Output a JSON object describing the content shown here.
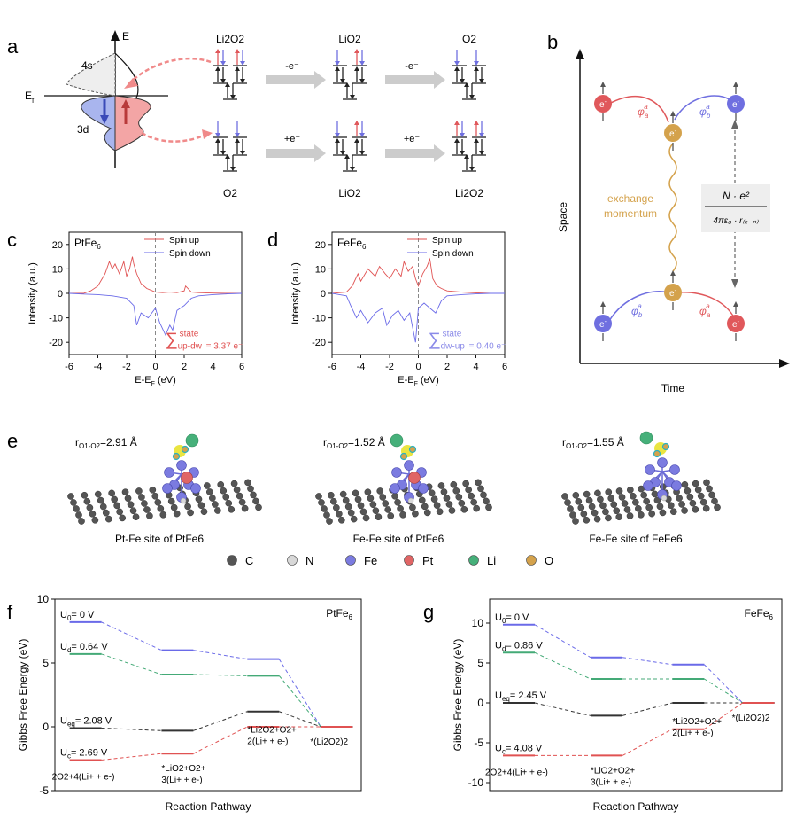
{
  "panels": {
    "a": "a",
    "b": "b",
    "c": "c",
    "d": "d",
    "e": "e",
    "f": "f",
    "g": "g"
  },
  "panel_a": {
    "axis_E": "E",
    "E_f": "E",
    "E_f_sub": "f",
    "orb_4s": "4s",
    "orb_3d": "3d",
    "top_row": [
      "Li2O2",
      "LiO2",
      "O2"
    ],
    "top_arrows": [
      "-e⁻",
      "-e⁻"
    ],
    "bottom_row": [
      "O2",
      "LiO2",
      "Li2O2"
    ],
    "bottom_arrows": [
      "+e⁻",
      "+e⁻"
    ],
    "colors": {
      "up": "#e0585b",
      "down": "#6f6fe0",
      "arrow": "#cccccc"
    }
  },
  "panel_b": {
    "xlabel": "Time",
    "ylabel": "Space",
    "electron": "e",
    "exchange": [
      "exchange",
      "momentum"
    ],
    "phi_a": "φ",
    "phi_b": "φ",
    "colors": {
      "red": "#e0585b",
      "blue": "#6f6fe0",
      "gold": "#d4a24c"
    }
  },
  "chart_data": [
    {
      "id": "c",
      "type": "line",
      "title": "PtFe6",
      "xlabel": "E-EF (eV)",
      "ylabel": "Intensity (a.u.)",
      "xlim": [
        -6,
        6
      ],
      "ylim": [
        -25,
        25
      ],
      "xticks": [
        -6,
        -4,
        -2,
        0,
        2,
        4,
        6
      ],
      "yticks": [
        -20,
        -10,
        0,
        10,
        20
      ],
      "series": [
        {
          "name": "Spin up",
          "color": "#e05252",
          "x": [
            -6,
            -5,
            -4.5,
            -4,
            -3.5,
            -3.2,
            -3,
            -2.8,
            -2.5,
            -2.2,
            -2,
            -1.8,
            -1.6,
            -1.5,
            -1.3,
            -1,
            -0.6,
            -0.2,
            0,
            0.5,
            1,
            1.5,
            2,
            2.1,
            2.5,
            3,
            4,
            5,
            6
          ],
          "values": [
            0,
            0,
            1,
            3,
            8,
            13,
            10,
            12,
            8,
            13,
            7,
            10,
            15,
            12,
            8,
            4,
            2,
            1,
            0.5,
            0.3,
            0.5,
            0.3,
            1,
            3,
            0.5,
            0.3,
            0.1,
            0,
            0
          ]
        },
        {
          "name": "Spin down",
          "color": "#6a6ae8",
          "x": [
            -6,
            -5,
            -4,
            -3,
            -2,
            -1.5,
            -1.3,
            -1,
            -0.5,
            0,
            0.3,
            0.7,
            1,
            1.2,
            1.5,
            2,
            2.5,
            3,
            4,
            5,
            6
          ],
          "values": [
            0,
            -0.3,
            -0.5,
            -1,
            -2,
            -5,
            -13,
            -8,
            -10,
            -6,
            -12,
            -17,
            -13,
            -15,
            -7,
            -5,
            -2,
            -1,
            -0.5,
            -0.2,
            0
          ]
        }
      ],
      "annotation": {
        "symbol": "∑",
        "top": "state",
        "bottom": "up-dw",
        "value": "= 3.37 e⁻",
        "color": "#e05252"
      }
    },
    {
      "id": "d",
      "type": "line",
      "title": "FeFe6",
      "xlabel": "E-EF (eV)",
      "ylabel": "Intensity (a.u.)",
      "xlim": [
        -6,
        6
      ],
      "ylim": [
        -25,
        25
      ],
      "xticks": [
        -6,
        -4,
        -2,
        0,
        2,
        4,
        6
      ],
      "yticks": [
        -20,
        -10,
        0,
        10,
        20
      ],
      "series": [
        {
          "name": "Spin up",
          "color": "#e05252",
          "x": [
            -6,
            -5,
            -4.6,
            -4.2,
            -4,
            -3.5,
            -3,
            -2.7,
            -2.3,
            -2,
            -1.6,
            -1.2,
            -1,
            -0.7,
            -0.4,
            -0.2,
            0,
            0.3,
            0.6,
            0.8,
            1,
            1.3,
            1.6,
            2,
            3,
            4,
            5,
            6
          ],
          "values": [
            0,
            0.5,
            3,
            8,
            5,
            10,
            7,
            11,
            8,
            6,
            10,
            7,
            13,
            9,
            11,
            6,
            3,
            8,
            11,
            14,
            6,
            3,
            2,
            1,
            0.5,
            0.2,
            0,
            0
          ]
        },
        {
          "name": "Spin down",
          "color": "#6a6ae8",
          "x": [
            -6,
            -5,
            -4.7,
            -4.3,
            -4,
            -3.5,
            -3,
            -2.5,
            -2.2,
            -1.8,
            -1.4,
            -1,
            -0.6,
            -0.2,
            0,
            0.4,
            0.8,
            1.2,
            1.6,
            2,
            3,
            4,
            5,
            6
          ],
          "values": [
            0,
            -1,
            -5,
            -10,
            -7,
            -12,
            -8,
            -6,
            -13,
            -9,
            -7,
            -11,
            -8,
            -20,
            -6,
            -4,
            -6,
            -8,
            -3,
            -1,
            -0.5,
            -0.2,
            0,
            0
          ]
        }
      ],
      "annotation": {
        "symbol": "∑",
        "top": "state",
        "bottom": "dw-up",
        "value": "= 0.40 e⁻",
        "color": "#8a8ae8"
      }
    },
    {
      "id": "f",
      "type": "line",
      "title": "PtFe6",
      "xlabel": "Reaction Pathway",
      "ylabel": "Gibbs Free Energy (eV)",
      "ylim": [
        -5,
        10
      ],
      "yticks": [
        -5,
        0,
        5,
        10
      ],
      "categories": [
        "2O2+4(Li+ + e-)",
        "*LiO2+O2+3(Li+ + e-)",
        "*Li2O2+O2+2(Li+ + e-)",
        "*(Li2O2)2"
      ],
      "series": [
        {
          "name": "U0= 0 V",
          "color": "#6a6ae8",
          "values": [
            8.2,
            6.0,
            5.3,
            0
          ]
        },
        {
          "name": "Ud= 0.64 V",
          "color": "#44aa77",
          "values": [
            5.7,
            4.1,
            4.0,
            0
          ]
        },
        {
          "name": "Ueq= 2.08 V",
          "color": "#333333",
          "values": [
            -0.1,
            -0.3,
            1.2,
            0
          ]
        },
        {
          "name": "Uc= 2.69 V",
          "color": "#e05252",
          "values": [
            -2.6,
            -2.1,
            0,
            0
          ]
        }
      ]
    },
    {
      "id": "g",
      "type": "line",
      "title": "FeFe6",
      "xlabel": "Reaction Pathway",
      "ylabel": "Gibbs Free Energy (eV)",
      "ylim": [
        -11,
        13
      ],
      "yticks": [
        -10,
        -5,
        0,
        5,
        10
      ],
      "categories": [
        "2O2+4(Li+ + e-)",
        "*LiO2+O2+3(Li+ + e-)",
        "*Li2O2+O2+2(Li+ + e-)",
        "*(Li2O2)2"
      ],
      "series": [
        {
          "name": "U0= 0 V",
          "color": "#6a6ae8",
          "values": [
            9.8,
            5.7,
            4.8,
            0
          ]
        },
        {
          "name": "Ud= 0.86 V",
          "color": "#44aa77",
          "values": [
            6.3,
            3.0,
            3.0,
            0
          ]
        },
        {
          "name": "Ueq= 2.45 V",
          "color": "#333333",
          "values": [
            0,
            -1.6,
            0,
            0
          ]
        },
        {
          "name": "Uc= 4.08 V",
          "color": "#e05252",
          "values": [
            -6.6,
            -6.6,
            -3.3,
            0
          ]
        }
      ]
    }
  ],
  "panel_e": {
    "r_labels": [
      "2.91 Å",
      "1.52 Å",
      "1.55 Å"
    ],
    "r_prefix": "r",
    "r_sub": "O1-O2",
    "captions": [
      "Pt-Fe site of PtFe6",
      "Fe-Fe site of PtFe6",
      "Fe-Fe site of FeFe6"
    ],
    "legend": [
      {
        "label": "C",
        "color": "#555555"
      },
      {
        "label": "N",
        "color": "#d8d8d8"
      },
      {
        "label": "Fe",
        "color": "#7b7be0"
      },
      {
        "label": "Pt",
        "color": "#e06565"
      },
      {
        "label": "Li",
        "color": "#46b07a"
      },
      {
        "label": "O",
        "color": "#d4a24c"
      }
    ]
  }
}
